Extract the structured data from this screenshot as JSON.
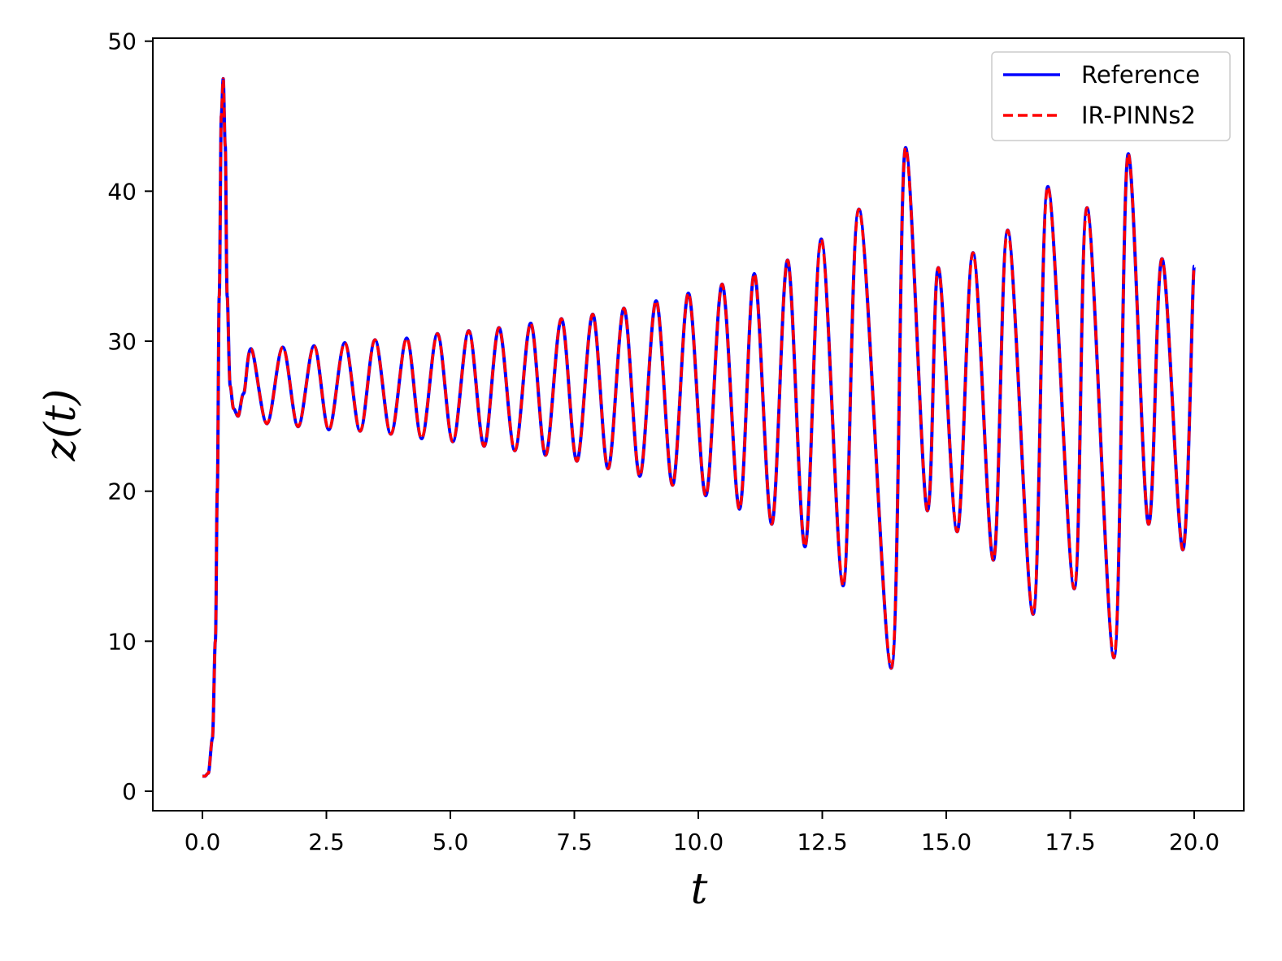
{
  "chart_data": {
    "type": "line",
    "xlabel": "t",
    "ylabel": "z(t)",
    "xlim": [
      -1.0,
      21.0
    ],
    "ylim": [
      -1.3,
      50.2
    ],
    "x_ticks": [
      0.0,
      2.5,
      5.0,
      7.5,
      10.0,
      12.5,
      15.0,
      17.5,
      20.0
    ],
    "x_tick_labels": [
      "0.0",
      "2.5",
      "5.0",
      "7.5",
      "10.0",
      "12.5",
      "15.0",
      "17.5",
      "20.0"
    ],
    "y_ticks": [
      0,
      10,
      20,
      30,
      40,
      50
    ],
    "y_tick_labels": [
      "0",
      "10",
      "20",
      "30",
      "40",
      "50"
    ],
    "grid": false,
    "legend_position": "top-right",
    "series": [
      {
        "name": "Reference",
        "color": "#0000ff",
        "style": "solid"
      },
      {
        "name": "IR-PINNs2",
        "color": "#ff0000",
        "style": "dashed"
      }
    ],
    "x": [
      0.0,
      0.05,
      0.12,
      0.2,
      0.26,
      0.3,
      0.34,
      0.38,
      0.42,
      0.46,
      0.5,
      0.56,
      0.63,
      0.72,
      0.83,
      0.98,
      1.3,
      1.62,
      1.93,
      2.25,
      2.55,
      2.87,
      3.18,
      3.48,
      3.8,
      4.12,
      4.42,
      4.74,
      5.05,
      5.37,
      5.68,
      5.98,
      6.3,
      6.62,
      6.92,
      7.24,
      7.55,
      7.87,
      8.18,
      8.5,
      8.82,
      9.15,
      9.48,
      9.8,
      10.15,
      10.48,
      10.83,
      11.13,
      11.48,
      11.8,
      12.15,
      12.48,
      12.92,
      13.24,
      13.89,
      14.18,
      14.62,
      14.84,
      15.22,
      15.54,
      15.95,
      16.24,
      16.75,
      17.05,
      17.58,
      17.84,
      18.38,
      18.67,
      19.08,
      19.35,
      19.77,
      20.0
    ],
    "y": [
      1.0,
      1.0,
      1.2,
      3.5,
      10.0,
      20.0,
      33.0,
      45.0,
      47.5,
      43.0,
      33.0,
      27.0,
      25.5,
      25.0,
      26.5,
      29.5,
      24.5,
      29.6,
      24.3,
      29.7,
      24.1,
      29.9,
      24.0,
      30.1,
      23.8,
      30.2,
      23.5,
      30.5,
      23.3,
      30.7,
      23.0,
      30.9,
      22.7,
      31.2,
      22.4,
      31.5,
      22.0,
      31.8,
      21.5,
      32.2,
      21.0,
      32.7,
      20.4,
      33.2,
      19.7,
      33.8,
      18.8,
      34.5,
      17.8,
      35.4,
      16.3,
      36.8,
      13.7,
      38.8,
      8.2,
      42.9,
      18.7,
      34.9,
      17.3,
      35.9,
      15.4,
      37.4,
      11.8,
      40.3,
      13.5,
      38.9,
      8.9,
      42.5,
      17.8,
      35.5,
      16.1,
      35.0
    ]
  }
}
